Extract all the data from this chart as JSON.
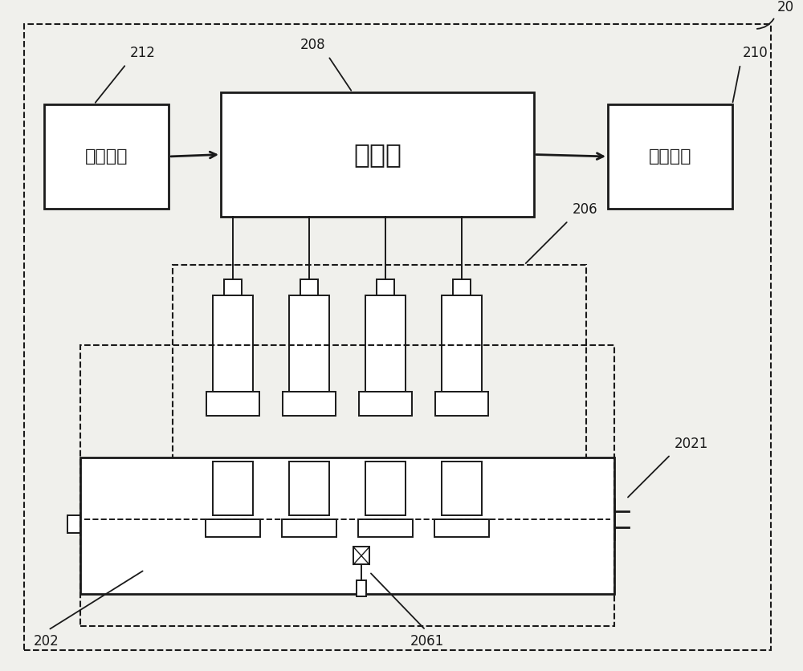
{
  "bg_color": "#f0f0ec",
  "line_color": "#1a1a1a",
  "label_20": "20",
  "label_208": "208",
  "label_210": "210",
  "label_212": "212",
  "label_206": "206",
  "label_202": "202",
  "label_2021": "2021",
  "label_2061": "2061",
  "text_mcu": "单片机",
  "text_power": "电源装置",
  "text_alarm": "报警装置",
  "font_size_label": 12,
  "font_size_chinese": 16
}
